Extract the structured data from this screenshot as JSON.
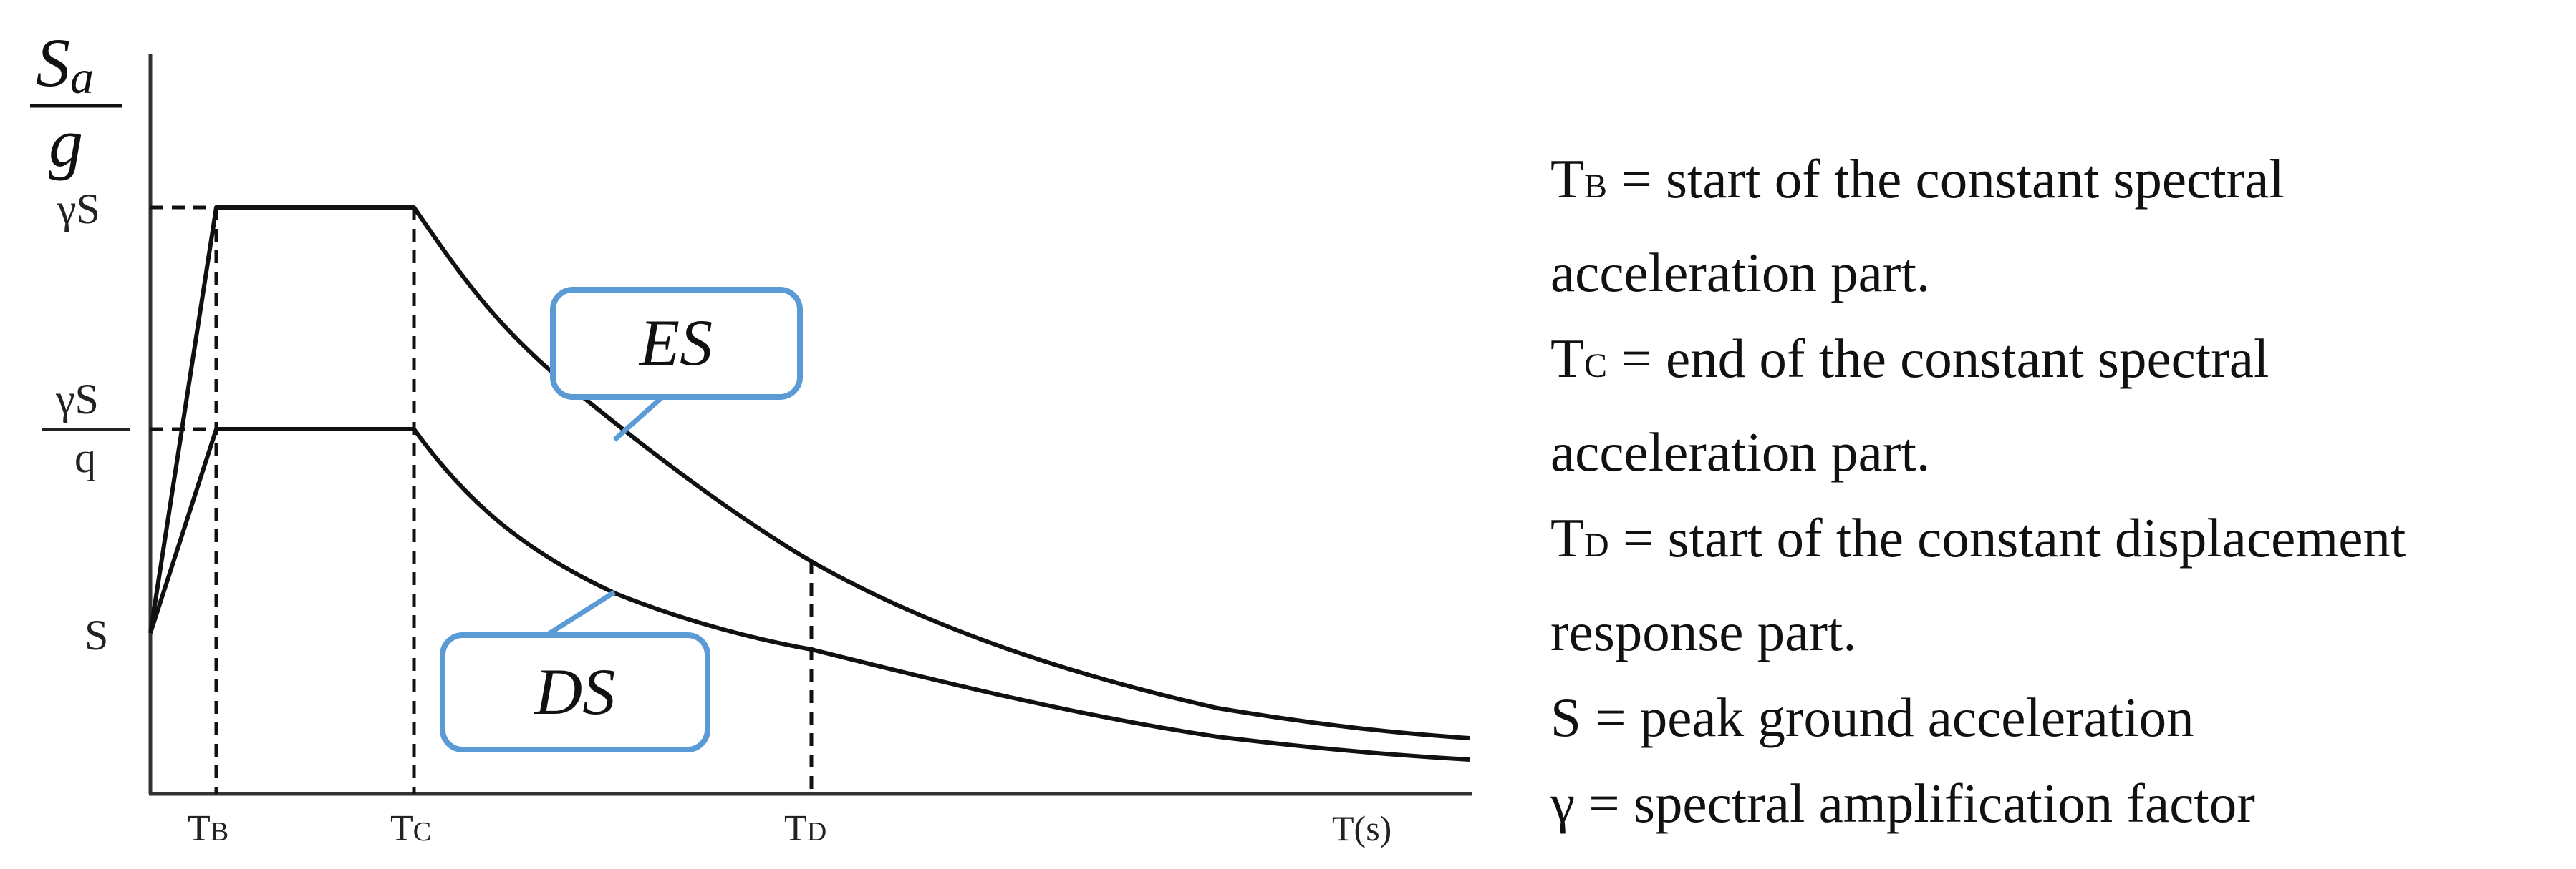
{
  "diagram": {
    "y_axis_label": {
      "numerator": "S",
      "numerator_sub": "a",
      "denominator": "g"
    },
    "y_ticks": {
      "gamma_s": "γS",
      "gamma_s_over_q": {
        "numerator": "γS",
        "denominator": "q"
      },
      "s": "S"
    },
    "x_ticks": {
      "tb": {
        "main": "T",
        "sub": "B"
      },
      "tc": {
        "main": "T",
        "sub": "C"
      },
      "td": {
        "main": "T",
        "sub": "D"
      },
      "t_s": "T(s)"
    },
    "callouts": {
      "es": "ES",
      "ds": "DS"
    },
    "colors": {
      "curve": "#111111",
      "callout_border": "#5b9bd5",
      "axis": "#333333"
    }
  },
  "legend": [
    {
      "symbol": "T",
      "sub": "B",
      "line1": " = start of the constant spectral",
      "line2": "acceleration part."
    },
    {
      "symbol": "T",
      "sub": "C",
      "line1": " = end of the constant spectral",
      "line2": "acceleration part."
    },
    {
      "symbol": "T",
      "sub": "D",
      "line1": " = start of the constant displacement",
      "line2": "response part."
    },
    {
      "symbol": "S",
      "sub": "",
      "line1": " = peak ground acceleration",
      "line2": ""
    },
    {
      "symbol": "γ",
      "sub": "",
      "line1": " = spectral amplification factor",
      "line2": ""
    }
  ]
}
